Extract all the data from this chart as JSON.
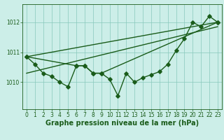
{
  "xlabel": "Graphe pression niveau de la mer (hPa)",
  "background_color": "#cceee8",
  "line_color": "#1a5c1a",
  "grid_color": "#88c8bc",
  "ylim": [
    1009.1,
    1012.6
  ],
  "xlim": [
    -0.5,
    23.5
  ],
  "yticks": [
    1010,
    1011,
    1012
  ],
  "xticks": [
    0,
    1,
    2,
    3,
    4,
    5,
    6,
    7,
    8,
    9,
    10,
    11,
    12,
    13,
    14,
    15,
    16,
    17,
    18,
    19,
    20,
    21,
    22,
    23
  ],
  "series1_x": [
    0,
    1,
    2,
    3,
    4,
    5,
    6,
    7,
    8,
    9,
    10,
    11,
    12,
    13,
    14,
    15,
    16,
    17,
    18,
    19,
    20,
    21,
    22,
    23
  ],
  "series1_y": [
    1010.85,
    1010.6,
    1010.3,
    1010.2,
    1010.0,
    1009.85,
    1010.55,
    1010.55,
    1010.3,
    1010.3,
    1010.1,
    1009.55,
    1010.3,
    1010.0,
    1010.15,
    1010.25,
    1010.35,
    1010.6,
    1011.05,
    1011.45,
    1012.0,
    1011.85,
    1012.2,
    1012.0
  ],
  "series2_x": [
    0,
    6,
    7,
    8,
    9,
    23
  ],
  "series2_y": [
    1010.85,
    1010.55,
    1010.55,
    1010.3,
    1010.3,
    1012.0
  ],
  "trend1_x": [
    0,
    23
  ],
  "trend1_y": [
    1010.85,
    1012.0
  ],
  "trend2_x": [
    0,
    23
  ],
  "trend2_y": [
    1010.3,
    1011.85
  ],
  "markersize": 2.8,
  "linewidth": 1.0,
  "tick_fontsize": 5.5,
  "label_fontsize": 7.0
}
